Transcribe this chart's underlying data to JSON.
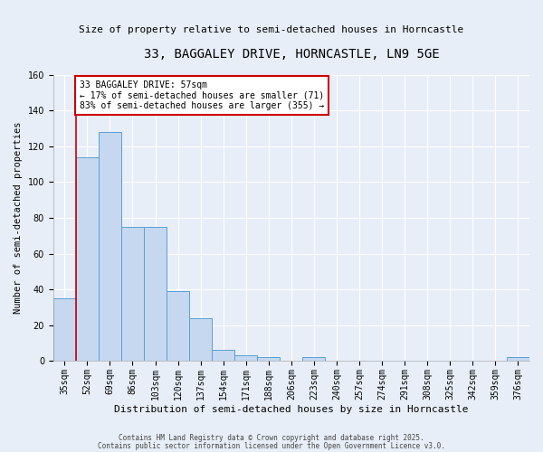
{
  "title": "33, BAGGALEY DRIVE, HORNCASTLE, LN9 5GE",
  "subtitle": "Size of property relative to semi-detached houses in Horncastle",
  "xlabel": "Distribution of semi-detached houses by size in Horncastle",
  "ylabel": "Number of semi-detached properties",
  "bar_values": [
    35,
    114,
    128,
    75,
    75,
    39,
    24,
    6,
    3,
    2,
    0,
    2,
    0,
    0,
    0,
    0,
    0,
    0,
    0,
    0,
    2
  ],
  "bar_labels": [
    "35sqm",
    "52sqm",
    "69sqm",
    "86sqm",
    "103sqm",
    "120sqm",
    "137sqm",
    "154sqm",
    "171sqm",
    "188sqm",
    "206sqm",
    "223sqm",
    "240sqm",
    "257sqm",
    "274sqm",
    "291sqm",
    "308sqm",
    "325sqm",
    "342sqm",
    "359sqm",
    "376sqm"
  ],
  "bar_color": "#c5d8f0",
  "bar_edge_color": "#5a9fd4",
  "ylim": [
    0,
    160
  ],
  "yticks": [
    0,
    20,
    40,
    60,
    80,
    100,
    120,
    140,
    160
  ],
  "property_line_x": 1.0,
  "property_line_color": "#cc0000",
  "annotation_title": "33 BAGGALEY DRIVE: 57sqm",
  "annotation_line1": "← 17% of semi-detached houses are smaller (71)",
  "annotation_line2": "83% of semi-detached houses are larger (355) →",
  "annotation_box_color": "#cc0000",
  "footer_line1": "Contains HM Land Registry data © Crown copyright and database right 2025.",
  "footer_line2": "Contains public sector information licensed under the Open Government Licence v3.0.",
  "background_color": "#e8eef8",
  "plot_background": "#e8eef8",
  "grid_color": "#ffffff",
  "title_fontsize": 10,
  "subtitle_fontsize": 8,
  "ylabel_fontsize": 7.5,
  "xlabel_fontsize": 8,
  "tick_fontsize": 7,
  "footer_fontsize": 5.5
}
